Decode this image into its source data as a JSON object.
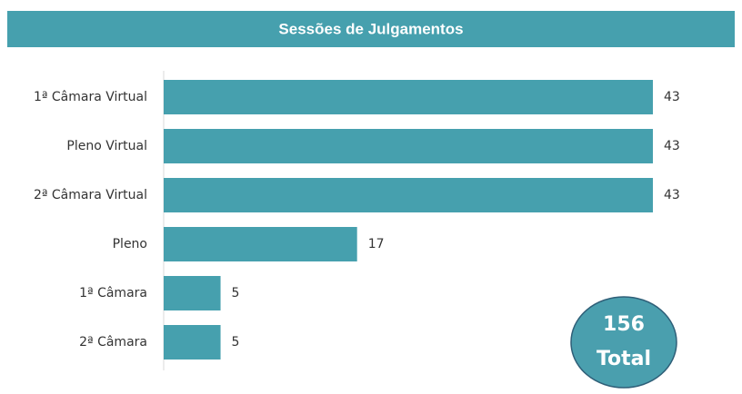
{
  "chart_data": {
    "type": "bar",
    "orientation": "horizontal",
    "title": "Sessões de Julgamentos",
    "categories": [
      "1ª Câmara Virtual",
      "Pleno Virtual",
      "2ª Câmara Virtual",
      "Pleno",
      "1ª Câmara",
      "2ª Câmara"
    ],
    "values": [
      43,
      43,
      43,
      17,
      5,
      5
    ],
    "color": "#46a0ae",
    "total": 156,
    "total_label": "Total"
  }
}
